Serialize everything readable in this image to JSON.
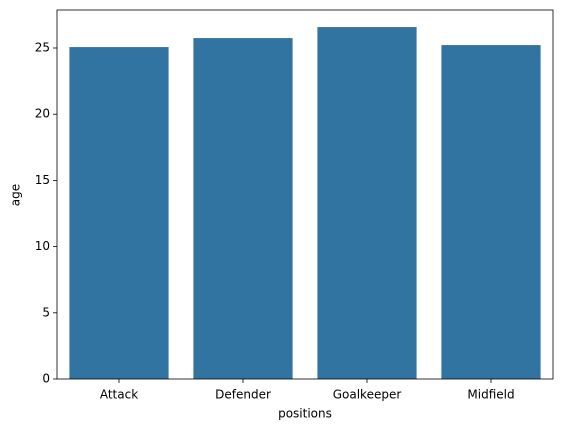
{
  "chart_data": {
    "type": "bar",
    "x_label": "positions",
    "y_label": "age",
    "categories": [
      "Attack",
      "Defender",
      "Goalkeeper",
      "Midfield"
    ],
    "values": [
      25.07,
      25.75,
      26.58,
      25.22
    ],
    "color": "#3274a1",
    "ylim": [
      0,
      27.87
    ],
    "yticks": [
      0,
      5,
      10,
      15,
      20,
      25
    ]
  }
}
